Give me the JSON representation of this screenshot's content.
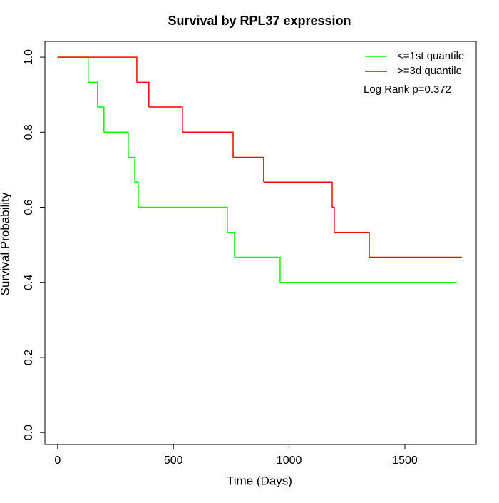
{
  "chart_data": {
    "type": "step",
    "title": "Survival by RPL37 expression",
    "x_label": "Time (Days)",
    "y_label": "Survival Probability",
    "annotation": "Log Rank p=0.372",
    "series": [
      {
        "name": "<=1st quantile",
        "color": "#00ff00",
        "x": [
          0,
          132,
          172,
          200,
          305,
          333,
          348,
          733,
          764,
          961,
          1725
        ],
        "values": [
          1,
          0.933,
          0.867,
          0.8,
          0.733,
          0.667,
          0.6,
          0.533,
          0.467,
          0.4,
          0.4
        ]
      },
      {
        "name": ">=3d quantile",
        "color": "#ff0000",
        "x": [
          0,
          342,
          394,
          539,
          758,
          890,
          1186,
          1195,
          1346,
          1746
        ],
        "values": [
          1,
          0.933,
          0.867,
          0.8,
          0.733,
          0.667,
          0.6,
          0.533,
          0.467,
          0.467
        ]
      }
    ],
    "xlim": [
      -55,
      1808
    ],
    "ylim": [
      -0.032,
      1.042
    ],
    "xticks": [
      0,
      500,
      1000,
      1500
    ],
    "yticks": [
      {
        "value": 0,
        "label": "0.0"
      },
      0.2,
      0.4,
      0.6,
      0.8,
      {
        "value": 1,
        "label": "1.0"
      }
    ],
    "legend": "top-right"
  }
}
